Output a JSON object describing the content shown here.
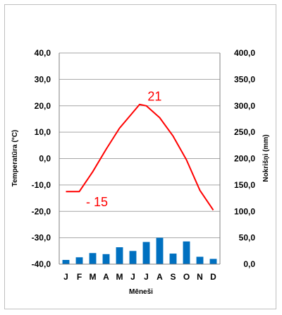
{
  "chart_data": {
    "type": "bar+line",
    "categories": [
      "J",
      "F",
      "M",
      "A",
      "M",
      "J",
      "J",
      "A",
      "S",
      "O",
      "N",
      "D"
    ],
    "xlabel": "Mēneši",
    "ylabel_left": "Temperatūra (°C)",
    "ylabel_right": "Nokrišņi (mm)",
    "ylim_left": [
      -40,
      40
    ],
    "ylim_right": [
      0,
      400
    ],
    "yticks_left": [
      "40,0",
      "30,0",
      "20,0",
      "10,0",
      "0,0",
      "-10,0",
      "-20,0",
      "-30,0",
      "-40,0"
    ],
    "yticks_right": [
      "400,0",
      "350,0",
      "300,0",
      "250,0",
      "200,0",
      "150,0",
      "100,0",
      "50,0",
      "0,0"
    ],
    "grid": true,
    "series": [
      {
        "type": "line",
        "axis": "left",
        "color": "#ff0000",
        "x": [
          0.5,
          1.5,
          2.5,
          3.5,
          4.5,
          5.5,
          6.0,
          6.5,
          7.5,
          8.5,
          9.5,
          10.5,
          11.5
        ],
        "values": [
          -12.5,
          -12.5,
          -5,
          3.5,
          11.5,
          17.5,
          20.5,
          20,
          15.5,
          8.5,
          -0.5,
          -12,
          -19.5
        ]
      },
      {
        "type": "bar",
        "axis": "right",
        "color": "#0070c0",
        "values": [
          8,
          13,
          21,
          19,
          32,
          25,
          42,
          50,
          20,
          43,
          14,
          10
        ]
      }
    ],
    "annotations": [
      {
        "text": "- 15",
        "x": 2.0,
        "y": -18
      },
      {
        "text": "21",
        "x": 6.6,
        "y": 22
      }
    ]
  }
}
